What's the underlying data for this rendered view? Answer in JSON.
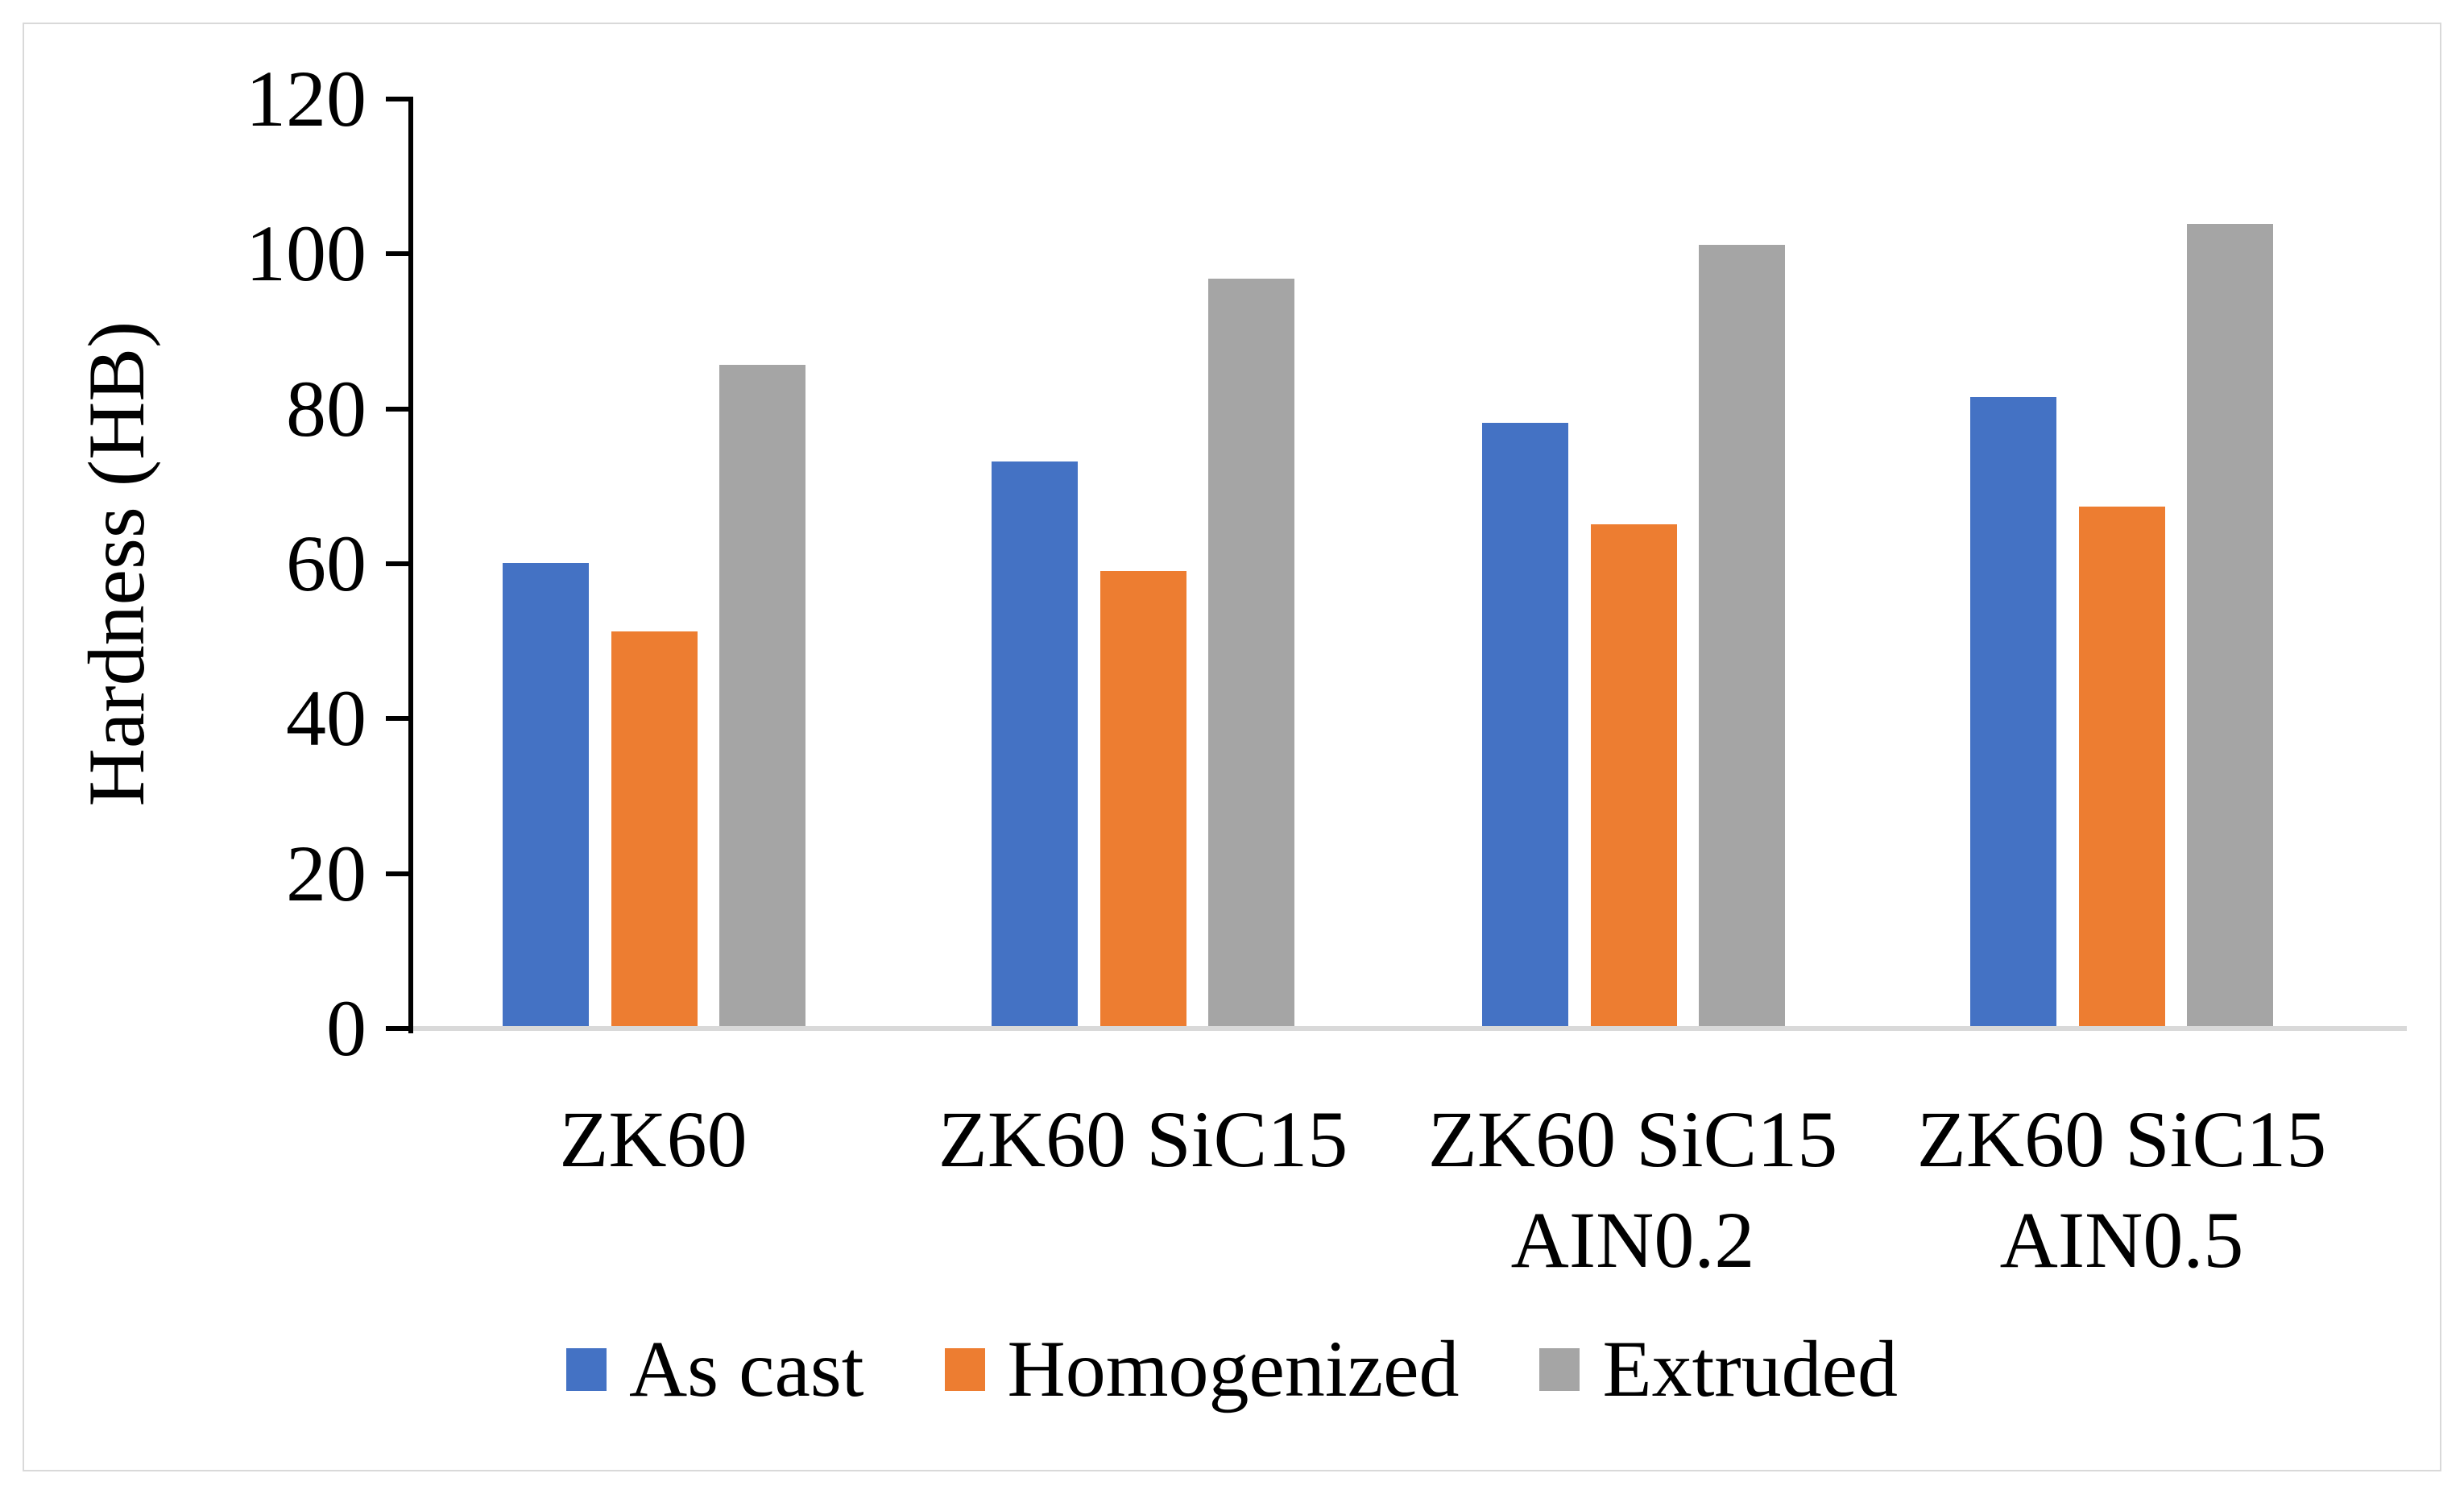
{
  "figure": {
    "y_axis_title": "Hardness (HB)",
    "y_ticks": [
      "0",
      "20",
      "40",
      "60",
      "80",
      "100",
      "120"
    ],
    "categories": [
      {
        "lines": [
          "ZK60"
        ]
      },
      {
        "lines": [
          "ZK60 SiC15"
        ]
      },
      {
        "lines": [
          "ZK60 SiC15",
          "AIN0.2"
        ]
      },
      {
        "lines": [
          "ZK60 SiC15",
          "AIN0.5"
        ]
      }
    ]
  },
  "chart_data": {
    "type": "bar",
    "title": "",
    "xlabel": "",
    "ylabel": "Hardness (HB)",
    "ylim": [
      0,
      120
    ],
    "ytick_step": 20,
    "grid": false,
    "legend_position": "bottom",
    "categories": [
      "ZK60",
      "ZK60 SiC15",
      "ZK60 SiC15 AIN0.2",
      "ZK60 SiC15 AIN0.5"
    ],
    "series": [
      {
        "name": "As cast",
        "color": "#4472C4",
        "values": [
          60.1,
          73.2,
          78.2,
          81.5
        ]
      },
      {
        "name": "Homogenized",
        "color": "#ED7D31",
        "values": [
          51.3,
          59.1,
          65.1,
          67.4
        ]
      },
      {
        "name": "Extruded",
        "color": "#A5A5A5",
        "values": [
          85.7,
          96.8,
          101.2,
          103.9
        ]
      }
    ]
  },
  "colors": {
    "axis": "#000000",
    "baseline": "#D9D9D9",
    "frame": "#D9D9D9",
    "text": "#000000"
  }
}
